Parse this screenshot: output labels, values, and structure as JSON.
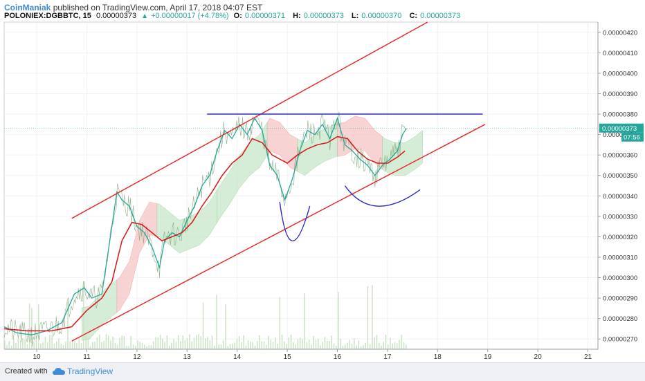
{
  "header": {
    "author": "CoinManiak",
    "published": "published on TradingView.com, April 17, 2018 04:07 EST",
    "symbol": "POLONIEX:DGBBTC, 15",
    "last": "0.00000373",
    "change": "+0.00000017 (+4.78%)",
    "open_label": "O:",
    "open": "0.00000371",
    "high_label": "H:",
    "high": "0.00000373",
    "low_label": "L:",
    "low": "0.00000370",
    "close_label": "C:",
    "close": "0.00000373"
  },
  "footer": {
    "created_with": "Created with",
    "brand": "TradingView"
  },
  "colors": {
    "channel": "#e62e2e",
    "resistance": "#2b2bc8",
    "pattern": "#2b2bc8",
    "ma": "#d42020",
    "price_line": "#26a69a",
    "price_tag": "#26a69a",
    "cloud_green": "#c8e6c9",
    "cloud_red": "#f6c5c5",
    "volume": "#b9d9b0"
  },
  "chart_data": {
    "type": "line",
    "title": "",
    "xlabel": "",
    "ylabel": "",
    "x_ticks": [
      "10",
      "11",
      "12",
      "13",
      "14",
      "15",
      "16",
      "17",
      "18",
      "19",
      "20",
      "21"
    ],
    "x_range": [
      9.35,
      21.2
    ],
    "y_ticks": [
      "0.00000270",
      "0.00000280",
      "0.00000290",
      "0.00000300",
      "0.00000310",
      "0.00000320",
      "0.00000330",
      "0.00000340",
      "0.00000350",
      "0.00000360",
      "0.00000370",
      "0.00000380",
      "0.00000390",
      "0.00000400",
      "0.00000410",
      "0.00000420"
    ],
    "ylim": [
      2.65e-06,
      4.25e-06
    ],
    "last_price_label": "0.00000373",
    "last_price": 3.73e-06,
    "countdown": "07:56",
    "price_series": {
      "name": "DGBBTC",
      "x": [
        9.35,
        9.6,
        9.9,
        10.2,
        10.5,
        10.75,
        10.95,
        11.1,
        11.3,
        11.5,
        11.6,
        11.7,
        11.85,
        12.0,
        12.15,
        12.3,
        12.45,
        12.55,
        12.7,
        12.85,
        13.0,
        13.15,
        13.3,
        13.45,
        13.6,
        13.75,
        13.9,
        14.05,
        14.2,
        14.35,
        14.5,
        14.65,
        14.8,
        14.95,
        15.1,
        15.25,
        15.4,
        15.55,
        15.7,
        15.85,
        16.0,
        16.15,
        16.3,
        16.45,
        16.6,
        16.75,
        16.9,
        17.05,
        17.2,
        17.3,
        17.38
      ],
      "values": [
        2.76e-06,
        2.73e-06,
        2.72e-06,
        2.74e-06,
        2.78e-06,
        2.92e-06,
        2.95e-06,
        2.9e-06,
        2.92e-06,
        3.25e-06,
        3.42e-06,
        3.38e-06,
        3.35e-06,
        3.25e-06,
        3.22e-06,
        3.15e-06,
        3.05e-06,
        3.18e-06,
        3.22e-06,
        3.2e-06,
        3.28e-06,
        3.35e-06,
        3.45e-06,
        3.5e-06,
        3.62e-06,
        3.72e-06,
        3.68e-06,
        3.75e-06,
        3.7e-06,
        3.78e-06,
        3.72e-06,
        3.55e-06,
        3.5e-06,
        3.38e-06,
        3.48e-06,
        3.62e-06,
        3.72e-06,
        3.7e-06,
        3.75e-06,
        3.68e-06,
        3.78e-06,
        3.65e-06,
        3.62e-06,
        3.58e-06,
        3.55e-06,
        3.5e-06,
        3.55e-06,
        3.58e-06,
        3.62e-06,
        3.7e-06,
        3.73e-06
      ]
    },
    "moving_average": {
      "x": [
        9.35,
        9.8,
        10.3,
        10.7,
        11.0,
        11.3,
        11.5,
        11.7,
        11.9,
        12.1,
        12.3,
        12.5,
        12.7,
        12.9,
        13.1,
        13.3,
        13.5,
        13.7,
        13.9,
        14.1,
        14.3,
        14.5,
        14.7,
        14.85,
        15.0,
        15.2,
        15.4,
        15.6,
        15.8,
        16.0,
        16.2,
        16.4,
        16.6,
        16.8,
        17.0,
        17.2,
        17.35
      ],
      "values": [
        2.75e-06,
        2.74e-06,
        2.74e-06,
        2.76e-06,
        2.84e-06,
        2.9e-06,
        2.98e-06,
        3.18e-06,
        3.27e-06,
        3.26e-06,
        3.22e-06,
        3.18e-06,
        3.2e-06,
        3.22e-06,
        3.27e-06,
        3.35e-06,
        3.42e-06,
        3.5e-06,
        3.56e-06,
        3.6e-06,
        3.68e-06,
        3.66e-06,
        3.6e-06,
        3.58e-06,
        3.56e-06,
        3.6e-06,
        3.63e-06,
        3.65e-06,
        3.66e-06,
        3.69e-06,
        3.68e-06,
        3.62e-06,
        3.58e-06,
        3.56e-06,
        3.56e-06,
        3.59e-06,
        3.62e-06
      ]
    },
    "annotations": [
      {
        "name": "channel-upper",
        "x": [
          10.7,
          17.8
        ],
        "values": [
          3.29e-06,
          4.25e-06
        ]
      },
      {
        "name": "channel-lower",
        "x": [
          10.7,
          18.95
        ],
        "values": [
          2.69e-06,
          3.75e-06
        ]
      },
      {
        "name": "resistance",
        "x": [
          13.4,
          18.9
        ],
        "values": [
          3.8e-06,
          3.8e-06
        ]
      },
      {
        "name": "pattern-v",
        "x": [
          14.85,
          15.1,
          15.45
        ],
        "values": [
          3.37e-06,
          3.18e-06,
          3.35e-06
        ]
      },
      {
        "name": "pattern-cup",
        "x": [
          16.15,
          16.8,
          17.65
        ],
        "values": [
          3.45e-06,
          3.35e-06,
          3.43e-06
        ]
      }
    ]
  }
}
